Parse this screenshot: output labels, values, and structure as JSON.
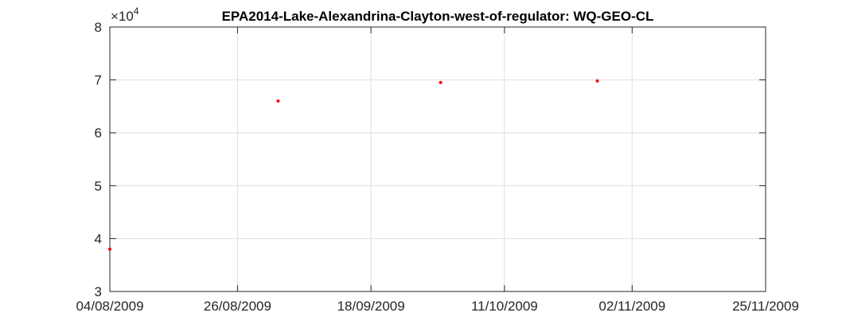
{
  "chart_data": {
    "type": "scatter",
    "title": "EPA2014-Lake-Alexandrina-Clayton-west-of-regulator: WQ-GEO-CL",
    "xlabel": "",
    "ylabel": "",
    "x_axis_type": "date",
    "xlim": [
      "04/08/2009",
      "25/11/2009"
    ],
    "x_ticks": [
      "04/08/2009",
      "26/08/2009",
      "18/09/2009",
      "11/10/2009",
      "02/11/2009",
      "25/11/2009"
    ],
    "ylim": [
      30000,
      80000
    ],
    "y_ticks": [
      3,
      4,
      5,
      6,
      7,
      8
    ],
    "y_multiplier": "×10",
    "y_multiplier_exponent": "4",
    "grid": true,
    "marker_color": "#ff0000",
    "points": [
      {
        "x": "04/08/2009",
        "y": 38000
      },
      {
        "x": "02/09/2009",
        "y": 66000
      },
      {
        "x": "30/09/2009",
        "y": 69500
      },
      {
        "x": "27/10/2009",
        "y": 69800
      }
    ]
  }
}
